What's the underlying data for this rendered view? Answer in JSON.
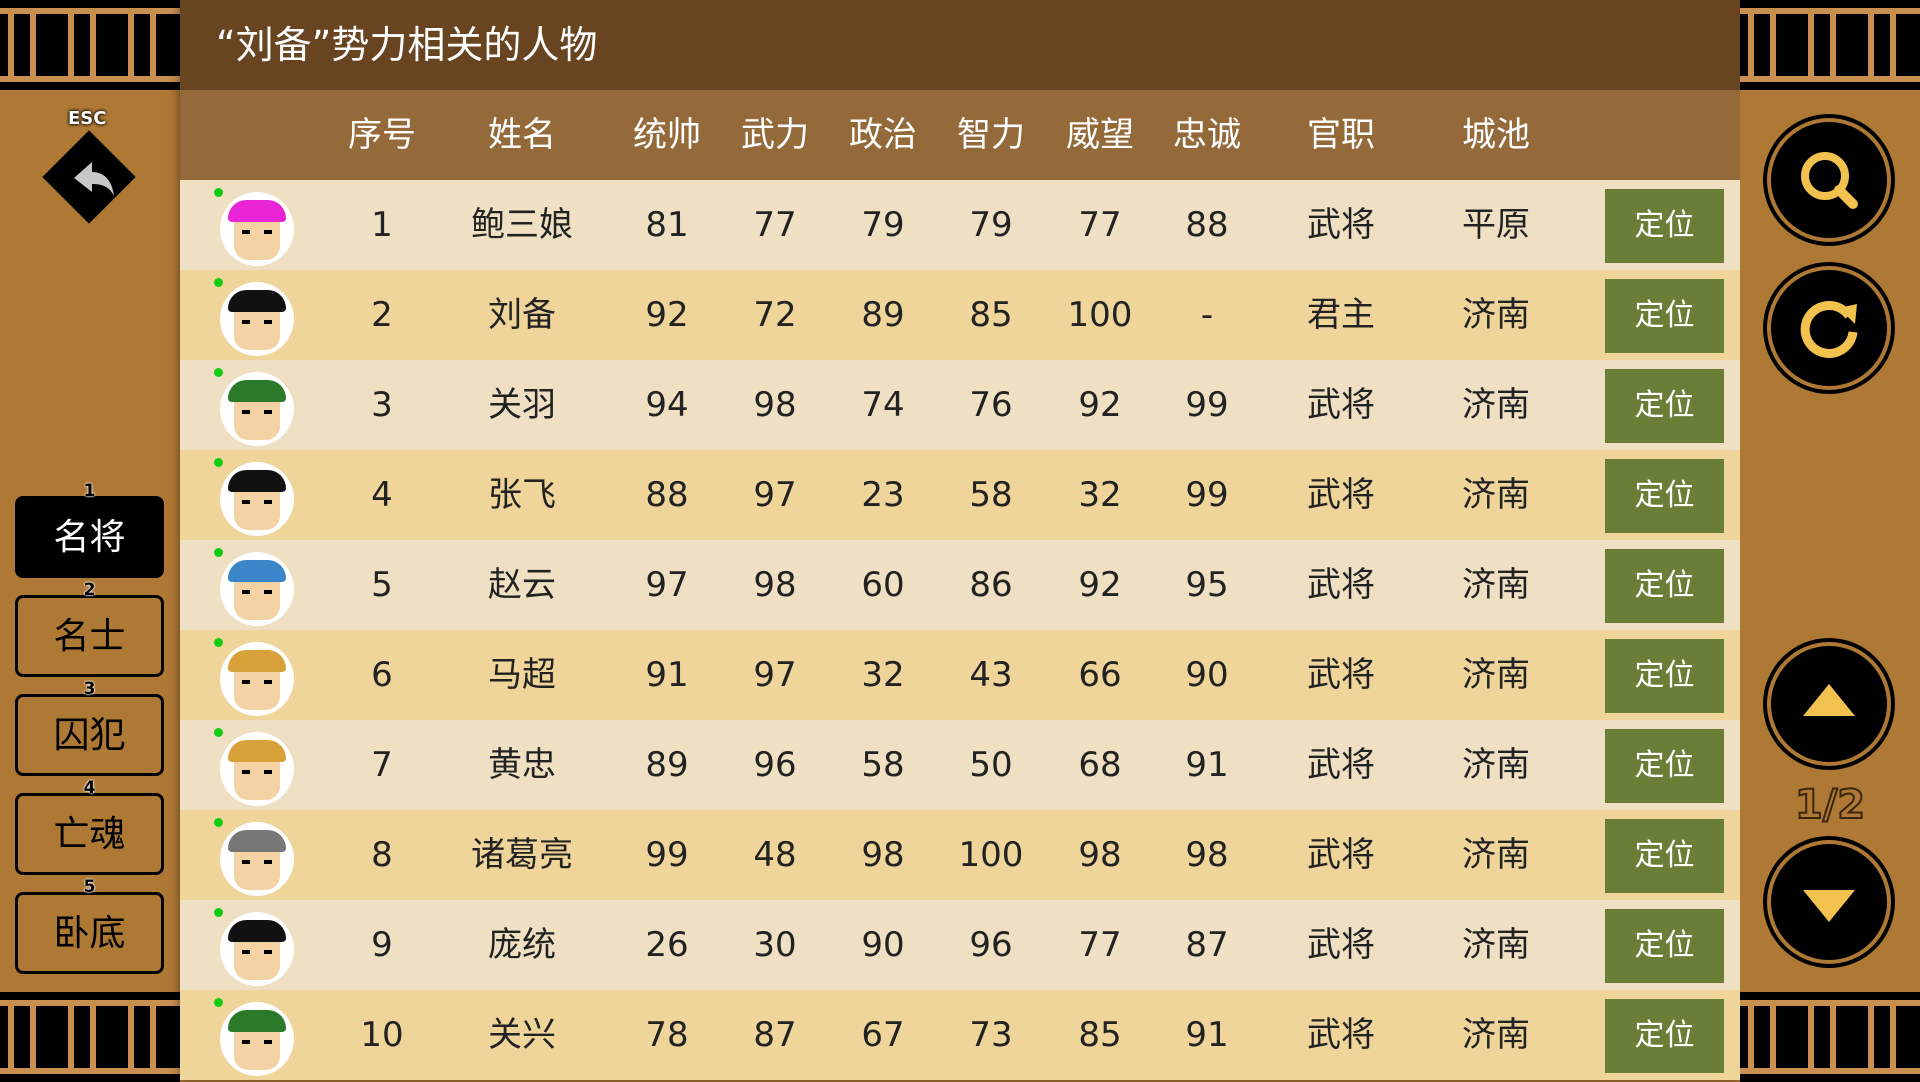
{
  "title": "“刘备”势力相关的人物",
  "esc_label": "ESC",
  "tabs": [
    {
      "num": "1",
      "label": "名将",
      "active": true
    },
    {
      "num": "2",
      "label": "名士"
    },
    {
      "num": "3",
      "label": "囚犯"
    },
    {
      "num": "4",
      "label": "亡魂"
    },
    {
      "num": "5",
      "label": "卧底"
    }
  ],
  "columns": [
    "序号",
    "姓名",
    "统帅",
    "武力",
    "政治",
    "智力",
    "威望",
    "忠诚",
    "官职",
    "城池"
  ],
  "locate_label": "定位",
  "rows": [
    {
      "id": "1",
      "name": "鲍三娘",
      "lead": "81",
      "war": "77",
      "pol": "79",
      "int": "79",
      "fame": "77",
      "loyal": "88",
      "rank": "武将",
      "city": "平原",
      "hat": "#e824d4"
    },
    {
      "id": "2",
      "name": "刘备",
      "lead": "92",
      "war": "72",
      "pol": "89",
      "int": "85",
      "fame": "100",
      "loyal": "-",
      "rank": "君主",
      "city": "济南",
      "hat": "#111111"
    },
    {
      "id": "3",
      "name": "关羽",
      "lead": "94",
      "war": "98",
      "pol": "74",
      "int": "76",
      "fame": "92",
      "loyal": "99",
      "rank": "武将",
      "city": "济南",
      "hat": "#2a7a2a"
    },
    {
      "id": "4",
      "name": "张飞",
      "lead": "88",
      "war": "97",
      "pol": "23",
      "int": "58",
      "fame": "32",
      "loyal": "99",
      "rank": "武将",
      "city": "济南",
      "hat": "#111111"
    },
    {
      "id": "5",
      "name": "赵云",
      "lead": "97",
      "war": "98",
      "pol": "60",
      "int": "86",
      "fame": "92",
      "loyal": "95",
      "rank": "武将",
      "city": "济南",
      "hat": "#3a86c8"
    },
    {
      "id": "6",
      "name": "马超",
      "lead": "91",
      "war": "97",
      "pol": "32",
      "int": "43",
      "fame": "66",
      "loyal": "90",
      "rank": "武将",
      "city": "济南",
      "hat": "#d9a13a"
    },
    {
      "id": "7",
      "name": "黄忠",
      "lead": "89",
      "war": "96",
      "pol": "58",
      "int": "50",
      "fame": "68",
      "loyal": "91",
      "rank": "武将",
      "city": "济南",
      "hat": "#d9a13a"
    },
    {
      "id": "8",
      "name": "诸葛亮",
      "lead": "99",
      "war": "48",
      "pol": "98",
      "int": "100",
      "fame": "98",
      "loyal": "98",
      "rank": "武将",
      "city": "济南",
      "hat": "#777777"
    },
    {
      "id": "9",
      "name": "庞统",
      "lead": "26",
      "war": "30",
      "pol": "90",
      "int": "96",
      "fame": "77",
      "loyal": "87",
      "rank": "武将",
      "city": "济南",
      "hat": "#111111"
    },
    {
      "id": "10",
      "name": "关兴",
      "lead": "78",
      "war": "87",
      "pol": "67",
      "int": "73",
      "fame": "85",
      "loyal": "91",
      "rank": "武将",
      "city": "济南",
      "hat": "#2a7a2a"
    }
  ],
  "pager": "1/2",
  "colors": {
    "title_bg": "#684420",
    "header_bg": "#946a3a",
    "row_a": "#efdfc3",
    "row_b": "#f0d59b",
    "button": "#6b7e38",
    "side": "#ae7835",
    "arrow": "#f2c14e"
  }
}
